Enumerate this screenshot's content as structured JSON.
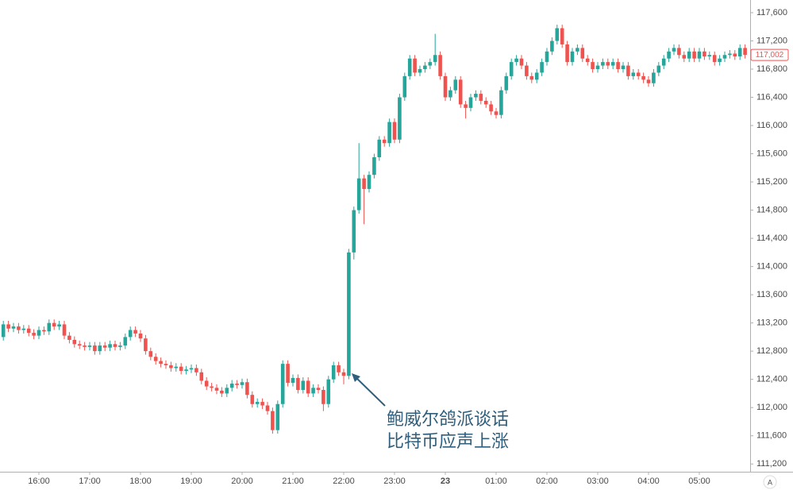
{
  "chart_data": {
    "type": "candlestick",
    "annotation": [
      "鲍威尔鸽派谈话",
      "比特币应声上涨"
    ],
    "last_value_label": "117,002",
    "auto_button": "A",
    "up_color": "#26a69a",
    "down_color": "#ef5350",
    "x": [
      "15:18",
      "15:24",
      "15:30",
      "15:36",
      "15:42",
      "15:48",
      "15:54",
      "16:00",
      "16:06",
      "16:12",
      "16:18",
      "16:24",
      "16:30",
      "16:36",
      "16:42",
      "16:48",
      "16:54",
      "17:00",
      "17:06",
      "17:12",
      "17:18",
      "17:24",
      "17:30",
      "17:36",
      "17:42",
      "17:48",
      "17:54",
      "18:00",
      "18:06",
      "18:12",
      "18:18",
      "18:24",
      "18:30",
      "18:36",
      "18:42",
      "18:48",
      "18:54",
      "19:00",
      "19:06",
      "19:12",
      "19:18",
      "19:24",
      "19:30",
      "19:36",
      "19:42",
      "19:48",
      "19:54",
      "20:00",
      "20:06",
      "20:12",
      "20:18",
      "20:24",
      "20:30",
      "20:36",
      "20:42",
      "20:48",
      "20:54",
      "21:00",
      "21:06",
      "21:12",
      "21:18",
      "21:24",
      "21:30",
      "21:36",
      "21:42",
      "21:48",
      "21:54",
      "22:00",
      "22:06",
      "22:12",
      "22:18",
      "22:24",
      "22:30",
      "22:36",
      "22:42",
      "22:48",
      "22:54",
      "23:00",
      "23:06",
      "23:12",
      "23:18",
      "23:24",
      "23:30",
      "23:36",
      "23:42",
      "23:48",
      "23:54",
      "00:00",
      "00:06",
      "00:12",
      "00:18",
      "00:24",
      "00:30",
      "00:36",
      "00:42",
      "00:48",
      "00:54",
      "01:00",
      "01:06",
      "01:12",
      "01:18",
      "01:24",
      "01:30",
      "01:36",
      "01:42",
      "01:48",
      "01:54",
      "02:00",
      "02:06",
      "02:12",
      "02:18",
      "02:24",
      "02:30",
      "02:36",
      "02:42",
      "02:48",
      "02:54",
      "03:00",
      "03:06",
      "03:12",
      "03:18",
      "03:24",
      "03:30",
      "03:36",
      "03:42",
      "03:48",
      "03:54",
      "04:00",
      "04:06",
      "04:12",
      "04:18",
      "04:24",
      "04:30",
      "04:36",
      "04:42",
      "04:48",
      "04:54",
      "05:00",
      "05:06",
      "05:12",
      "05:18",
      "05:24",
      "05:30",
      "05:36",
      "05:42",
      "05:48",
      "05:54"
    ],
    "open": [
      113000,
      113180,
      113120,
      113150,
      113100,
      113120,
      113060,
      113020,
      113100,
      113080,
      113200,
      113150,
      113180,
      113020,
      112960,
      112900,
      112880,
      112860,
      112880,
      112800,
      112880,
      112850,
      112900,
      112860,
      112880,
      113000,
      113100,
      113050,
      112980,
      112800,
      112720,
      112660,
      112620,
      112600,
      112560,
      112580,
      112520,
      112540,
      112560,
      112500,
      112380,
      112300,
      112280,
      112240,
      112200,
      112280,
      112340,
      112320,
      112360,
      112180,
      112050,
      112080,
      112030,
      111950,
      111680,
      112050,
      112620,
      112350,
      112420,
      112250,
      112380,
      112200,
      112280,
      112250,
      112050,
      112400,
      112600,
      112500,
      112450,
      114200,
      114800,
      115250,
      115100,
      115300,
      115550,
      115800,
      115750,
      116050,
      115800,
      116400,
      116700,
      116950,
      116750,
      116800,
      116850,
      116900,
      117000,
      116700,
      116400,
      116500,
      116650,
      116300,
      116250,
      116400,
      116450,
      116350,
      116300,
      116200,
      116150,
      116500,
      116700,
      116900,
      116950,
      116850,
      116700,
      116650,
      116750,
      116900,
      117050,
      117200,
      117380,
      117150,
      116900,
      117050,
      117100,
      116950,
      116900,
      116800,
      116850,
      116900,
      116850,
      116900,
      116800,
      116850,
      116700,
      116750,
      116700,
      116650,
      116600,
      116750,
      116850,
      116950,
      117050,
      117100,
      117000,
      116950,
      117050,
      116950,
      117050,
      116980,
      117000,
      116900,
      116950,
      117000,
      117020,
      116980,
      117100
    ],
    "high": [
      113230,
      113230,
      113200,
      113200,
      113170,
      113170,
      113110,
      113150,
      113150,
      113250,
      113250,
      113230,
      113230,
      113070,
      113010,
      112950,
      112930,
      112930,
      112930,
      112930,
      112930,
      112950,
      112950,
      112930,
      113050,
      113150,
      113150,
      113100,
      113030,
      112850,
      112770,
      112710,
      112670,
      112650,
      112630,
      112630,
      112590,
      112610,
      112610,
      112550,
      112430,
      112350,
      112330,
      112290,
      112330,
      112390,
      112390,
      112410,
      112410,
      112230,
      112130,
      112130,
      112080,
      112000,
      112100,
      112670,
      112670,
      112470,
      112470,
      112430,
      112430,
      112330,
      112330,
      112300,
      112450,
      112650,
      112650,
      112550,
      114250,
      114850,
      115750,
      115300,
      115350,
      115600,
      115850,
      115850,
      116100,
      116100,
      116450,
      116750,
      117000,
      117000,
      116850,
      116900,
      116950,
      117300,
      117050,
      116750,
      116550,
      116700,
      116700,
      116350,
      116450,
      116500,
      116500,
      116400,
      116350,
      116250,
      116550,
      116750,
      116950,
      117000,
      117000,
      116900,
      116750,
      116800,
      116950,
      117100,
      117250,
      117430,
      117430,
      117200,
      117100,
      117150,
      117150,
      117000,
      116950,
      116900,
      116950,
      116950,
      116950,
      116950,
      116900,
      116900,
      116800,
      116800,
      116750,
      116700,
      116800,
      116900,
      117000,
      117100,
      117150,
      117150,
      117050,
      117100,
      117100,
      117100,
      117100,
      117050,
      117050,
      117000,
      117050,
      117070,
      117070,
      117150,
      117150
    ],
    "low": [
      112950,
      113070,
      113070,
      113050,
      113050,
      113010,
      112970,
      112970,
      113030,
      113030,
      113100,
      113100,
      112970,
      112910,
      112850,
      112830,
      112810,
      112810,
      112750,
      112750,
      112800,
      112800,
      112810,
      112810,
      112830,
      112950,
      113000,
      112930,
      112750,
      112670,
      112610,
      112570,
      112550,
      112510,
      112510,
      112470,
      112470,
      112490,
      112450,
      112330,
      112250,
      112230,
      112190,
      112150,
      112150,
      112230,
      112270,
      112270,
      112130,
      112000,
      112000,
      111980,
      111900,
      111630,
      111630,
      112000,
      112300,
      112300,
      112200,
      112200,
      112150,
      112150,
      112200,
      111950,
      112000,
      112350,
      112450,
      112330,
      112400,
      114100,
      114750,
      114600,
      115050,
      115250,
      115500,
      115700,
      115700,
      115750,
      115750,
      116350,
      116650,
      116700,
      116700,
      116750,
      116800,
      116850,
      116650,
      116350,
      116350,
      116450,
      116250,
      116100,
      116200,
      116350,
      116300,
      116250,
      116150,
      116100,
      116100,
      116450,
      116650,
      116850,
      116800,
      116650,
      116600,
      116600,
      116700,
      116850,
      117000,
      117150,
      117100,
      116850,
      116850,
      117000,
      116900,
      116850,
      116750,
      116750,
      116800,
      116800,
      116800,
      116750,
      116750,
      116650,
      116650,
      116650,
      116600,
      116550,
      116550,
      116700,
      116800,
      116900,
      117000,
      116950,
      116900,
      116900,
      116900,
      116900,
      116930,
      116930,
      116850,
      116850,
      116900,
      116950,
      116930,
      116930,
      116950
    ],
    "close": [
      113180,
      113120,
      113150,
      113100,
      113120,
      113060,
      113020,
      113100,
      113080,
      113200,
      113150,
      113180,
      113020,
      112960,
      112900,
      112880,
      112860,
      112880,
      112800,
      112880,
      112850,
      112900,
      112860,
      112880,
      113000,
      113100,
      113050,
      112980,
      112800,
      112720,
      112660,
      112620,
      112600,
      112560,
      112580,
      112520,
      112540,
      112560,
      112500,
      112380,
      112300,
      112280,
      112240,
      112200,
      112280,
      112340,
      112320,
      112360,
      112180,
      112050,
      112080,
      112030,
      111950,
      111680,
      112050,
      112620,
      112350,
      112420,
      112250,
      112380,
      112200,
      112280,
      112250,
      112050,
      112400,
      112600,
      112500,
      112450,
      114200,
      114800,
      115250,
      115100,
      115300,
      115550,
      115800,
      115750,
      116050,
      115800,
      116400,
      116700,
      116950,
      116750,
      116800,
      116850,
      116900,
      117000,
      116700,
      116400,
      116500,
      116650,
      116300,
      116250,
      116400,
      116450,
      116350,
      116300,
      116200,
      116150,
      116500,
      116700,
      116900,
      116950,
      116850,
      116700,
      116650,
      116750,
      116900,
      117050,
      117200,
      117380,
      117150,
      116900,
      117050,
      117100,
      116950,
      116900,
      116800,
      116850,
      116900,
      116850,
      116900,
      116800,
      116850,
      116700,
      116750,
      116700,
      116650,
      116600,
      116750,
      116850,
      116950,
      117050,
      117100,
      117000,
      116950,
      117050,
      116950,
      117050,
      116980,
      117000,
      116900,
      116950,
      117000,
      117020,
      116980,
      117100,
      117002
    ],
    "xticks": [
      "16:00",
      "17:00",
      "18:00",
      "19:00",
      "20:00",
      "21:00",
      "22:00",
      "23:00",
      {
        "value": "00:00",
        "label": "23"
      },
      "01:00",
      "02:00",
      "03:00",
      "04:00",
      "05:00"
    ],
    "ylim": [
      111090,
      117780
    ],
    "yticks": [
      {
        "value": 111200,
        "label": "111,200"
      },
      {
        "value": 111600,
        "label": "111,600"
      },
      {
        "value": 112000,
        "label": "112,000"
      },
      {
        "value": 112400,
        "label": "112,400"
      },
      {
        "value": 112800,
        "label": "112,800"
      },
      {
        "value": 113200,
        "label": "113,200"
      },
      {
        "value": 113600,
        "label": "113,600"
      },
      {
        "value": 114000,
        "label": "114,000"
      },
      {
        "value": 114400,
        "label": "114,400"
      },
      {
        "value": 114800,
        "label": "114,800"
      },
      {
        "value": 115200,
        "label": "115,200"
      },
      {
        "value": 115600,
        "label": "115,600"
      },
      {
        "value": 116000,
        "label": "116,000"
      },
      {
        "value": 116400,
        "label": "116,400"
      },
      {
        "value": 116800,
        "label": "116,800"
      },
      {
        "value": 117200,
        "label": "117,200"
      },
      {
        "value": 117600,
        "label": "117,600"
      }
    ]
  }
}
